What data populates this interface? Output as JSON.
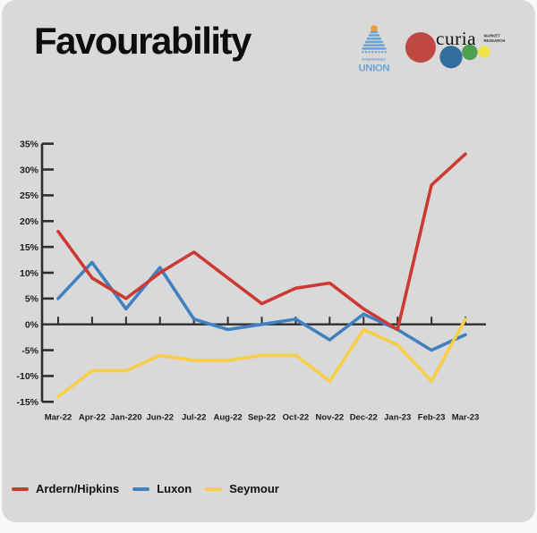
{
  "header": {
    "title": "Favourability",
    "logos": {
      "taxpayers_union": {
        "line1": "TAXPAYERS'",
        "line2": "UNION"
      },
      "curia": {
        "wordmark": "curia",
        "sub_line1": "MARKET",
        "sub_line2": "RESEARCH"
      }
    }
  },
  "chart_data": {
    "type": "line",
    "title": "Favourability",
    "categories": [
      "Mar-22",
      "Apr-22",
      "Jan-220",
      "Jun-22",
      "Jul-22",
      "Aug-22",
      "Sep-22",
      "Oct-22",
      "Nov-22",
      "Dec-22",
      "Jan-23",
      "Feb-23",
      "Mar-23"
    ],
    "series": [
      {
        "name": "Ardern/Hipkins",
        "color": "#cd3a34",
        "values": [
          18,
          9,
          5,
          10,
          14,
          9,
          4,
          7,
          8,
          3,
          -1,
          27,
          33
        ]
      },
      {
        "name": "Luxon",
        "color": "#4181c1",
        "values": [
          5,
          12,
          3,
          11,
          1,
          -1,
          0,
          1,
          -3,
          2,
          -1,
          -5,
          -2
        ]
      },
      {
        "name": "Seymour",
        "color": "#f7ce46",
        "values": [
          -14,
          -9,
          -9,
          -6,
          -7,
          -7,
          -6,
          -6,
          -11,
          -1,
          -4,
          -11,
          1
        ]
      }
    ],
    "ylim": [
      -15,
      35
    ],
    "ytick_step": 5,
    "ytick_labels": [
      "35%",
      "30%",
      "25%",
      "20%",
      "15%",
      "10%",
      "5%",
      "0%",
      "-5%",
      "-10%",
      "-15%"
    ],
    "grid": false,
    "legend_position": "bottom-left",
    "axis_color": "#2e2e2e",
    "label_color": "#1c1c1c"
  },
  "brand_colors": {
    "card_background": "#d9d9d9",
    "taxpayers_blue": "#6ba3d6",
    "taxpayers_orange": "#f59c38",
    "curia_red": "#c04843",
    "curia_blue": "#336e9e",
    "curia_green": "#4d9e50",
    "curia_yellow": "#efe14b",
    "curia_text": "#151515"
  }
}
